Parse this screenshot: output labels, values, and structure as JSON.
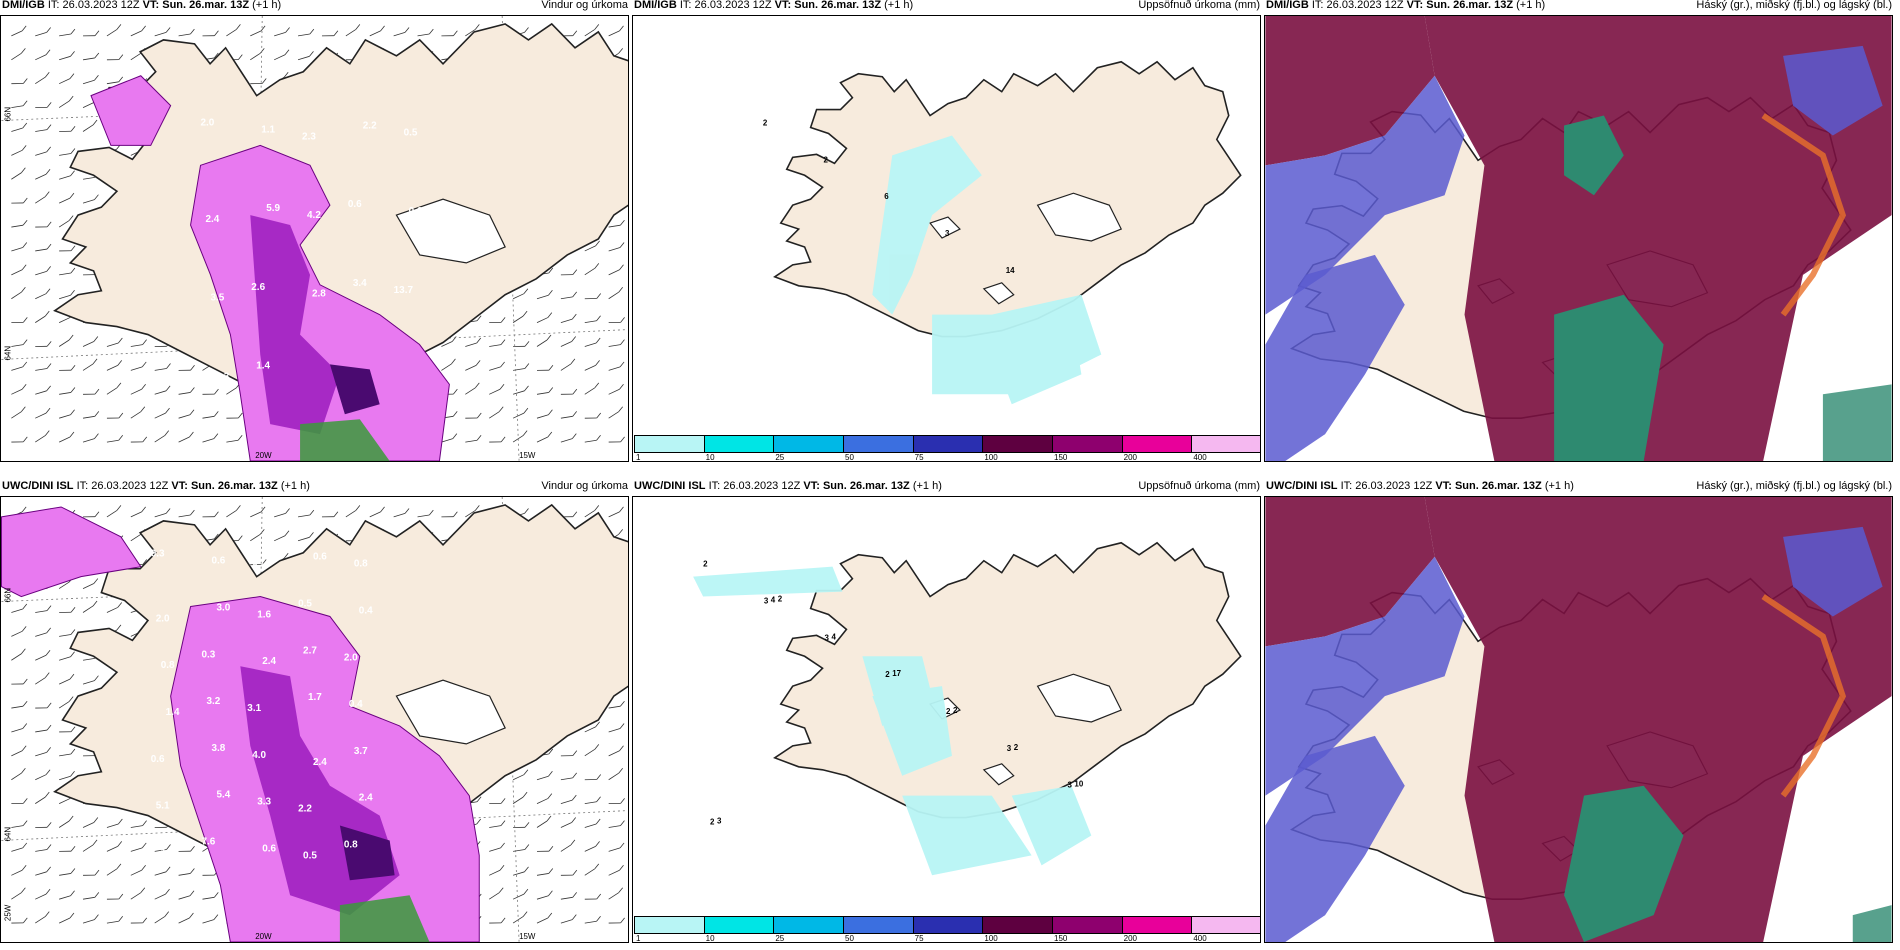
{
  "panels": [
    {
      "model": "DMI/IGB",
      "it_label": "IT:",
      "it": "26.03.2023 12Z",
      "vt_label": "VT:",
      "vt": "Sun. 26.mar. 13Z",
      "lead": "(+1 h)",
      "title": "Vindur og úrkoma"
    },
    {
      "model": "DMI/IGB",
      "it_label": "IT:",
      "it": "26.03.2023 12Z",
      "vt_label": "VT:",
      "vt": "Sun. 26.mar. 13Z",
      "lead": "(+1 h)",
      "title": "Uppsöfnuð úrkoma (mm)"
    },
    {
      "model": "DMI/IGB",
      "it_label": "IT:",
      "it": "26.03.2023 12Z",
      "vt_label": "VT:",
      "vt": "Sun. 26.mar. 13Z",
      "lead": "(+1 h)",
      "title": "Háský (gr.), miðský (fj.bl.) og lágský (bl.)"
    },
    {
      "model": "UWC/DINI ISL",
      "it_label": "IT:",
      "it": "26.03.2023 12Z",
      "vt_label": "VT:",
      "vt": "Sun. 26.mar. 13Z",
      "lead": "(+1 h)",
      "title": "Vindur og úrkoma"
    },
    {
      "model": "UWC/DINI ISL",
      "it_label": "IT:",
      "it": "26.03.2023 12Z",
      "vt_label": "VT:",
      "vt": "Sun. 26.mar. 13Z",
      "lead": "(+1 h)",
      "title": "Uppsöfnuð úrkoma (mm)"
    },
    {
      "model": "UWC/DINI ISL",
      "it_label": "IT:",
      "it": "26.03.2023 12Z",
      "vt_label": "VT:",
      "vt": "Sun. 26.mar. 13Z",
      "lead": "(+1 h)",
      "title": "Háský (gr.), miðský (fj.bl.) og lágský (bl.)"
    }
  ],
  "axis_labels": {
    "lat66": "66N",
    "lat64": "64N",
    "lon20": "20W",
    "lon15": "15W",
    "lon25": "25W"
  },
  "colorbar": {
    "ticks": [
      "1",
      "10",
      "25",
      "50",
      "75",
      "100",
      "150",
      "200",
      "400"
    ],
    "colors": [
      "#b8f5f5",
      "#00e5e5",
      "#00b8e6",
      "#3b6fe0",
      "#2a2fb0",
      "#5e0040",
      "#8e006e",
      "#e8009a",
      "#f5b8f0"
    ]
  },
  "wind_precip_top": [
    "2.0",
    "1.1",
    "2.3",
    "2.2",
    "0.5",
    "2.4",
    "5.9",
    "4.2",
    "0.6",
    "0.6",
    "3.5",
    "2.6",
    "2.8",
    "3.4",
    "13.7",
    "6.3",
    "1.4"
  ],
  "wind_precip_bottom": [
    "0.3",
    "0.6",
    "0.7",
    "0.6",
    "0.8",
    "2.0",
    "3.0",
    "1.6",
    "0.5",
    "0.4",
    "0.8",
    "0.3",
    "2.4",
    "2.7",
    "2.0",
    "1.4",
    "3.2",
    "3.1",
    "1.7",
    "0.4",
    "0.6",
    "3.8",
    "4.0",
    "2.4",
    "3.7",
    "5.1",
    "5.4",
    "3.3",
    "2.2",
    "2.4",
    "1.6",
    "7.6",
    "0.6",
    "0.5",
    "0.8"
  ],
  "accum_top": [
    "2",
    "2",
    "6",
    "3",
    "14"
  ],
  "accum_bottom": [
    "2",
    "3",
    "3",
    "2",
    "2",
    "3",
    "3",
    "2",
    "4",
    "4",
    "17",
    "2",
    "2",
    "10",
    "3",
    "2"
  ],
  "colors": {
    "land": "#f7ebdd",
    "sea": "#ffffff",
    "precip_light": "#e879f0",
    "precip_mid": "#a020c0",
    "precip_dark": "#4a0a70",
    "cloud_high": "#7a1040",
    "cloud_mid": "#5a5ad0",
    "cloud_low": "#2e8a70"
  }
}
